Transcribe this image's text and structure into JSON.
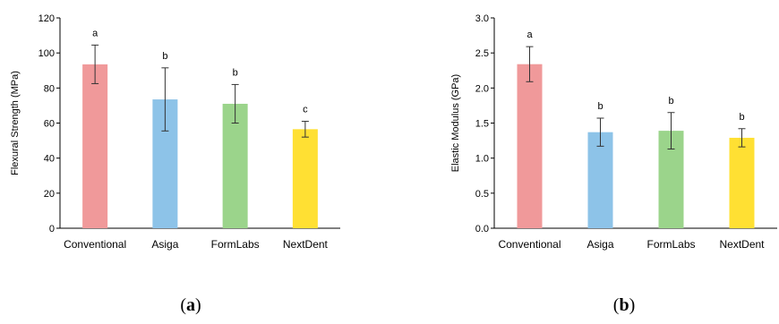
{
  "figure": {
    "panel_a_label": "a",
    "panel_b_label": "b"
  },
  "chart_data": [
    {
      "type": "bar",
      "categories": [
        "Conventional",
        "Asiga",
        "FormLabs",
        "NextDent"
      ],
      "values": [
        93.5,
        73.5,
        71.0,
        56.5
      ],
      "error": [
        11,
        18,
        11,
        4.5
      ],
      "significance": [
        "a",
        "b",
        "b",
        "c"
      ],
      "ylabel": "Flexural Strength (MPa)",
      "xlabel": "",
      "ylim": [
        0,
        120
      ],
      "yticks": [
        "0",
        "20",
        "40",
        "60",
        "80",
        "100",
        "120"
      ],
      "colors": [
        "#f0999a",
        "#8dc3e8",
        "#9bd48b",
        "#ffe033"
      ],
      "grid": false
    },
    {
      "type": "bar",
      "categories": [
        "Conventional",
        "Asiga",
        "FormLabs",
        "NextDent"
      ],
      "values": [
        2.34,
        1.37,
        1.39,
        1.29
      ],
      "error": [
        0.25,
        0.2,
        0.26,
        0.13
      ],
      "significance": [
        "a",
        "b",
        "b",
        "b"
      ],
      "ylabel": "Elastic Modulus (GPa)",
      "xlabel": "",
      "ylim": [
        0,
        3.0
      ],
      "yticks": [
        "0.0",
        "0.5",
        "1.0",
        "1.5",
        "2.0",
        "2.5",
        "3.0"
      ],
      "colors": [
        "#f0999a",
        "#8dc3e8",
        "#9bd48b",
        "#ffe033"
      ],
      "grid": false
    }
  ]
}
